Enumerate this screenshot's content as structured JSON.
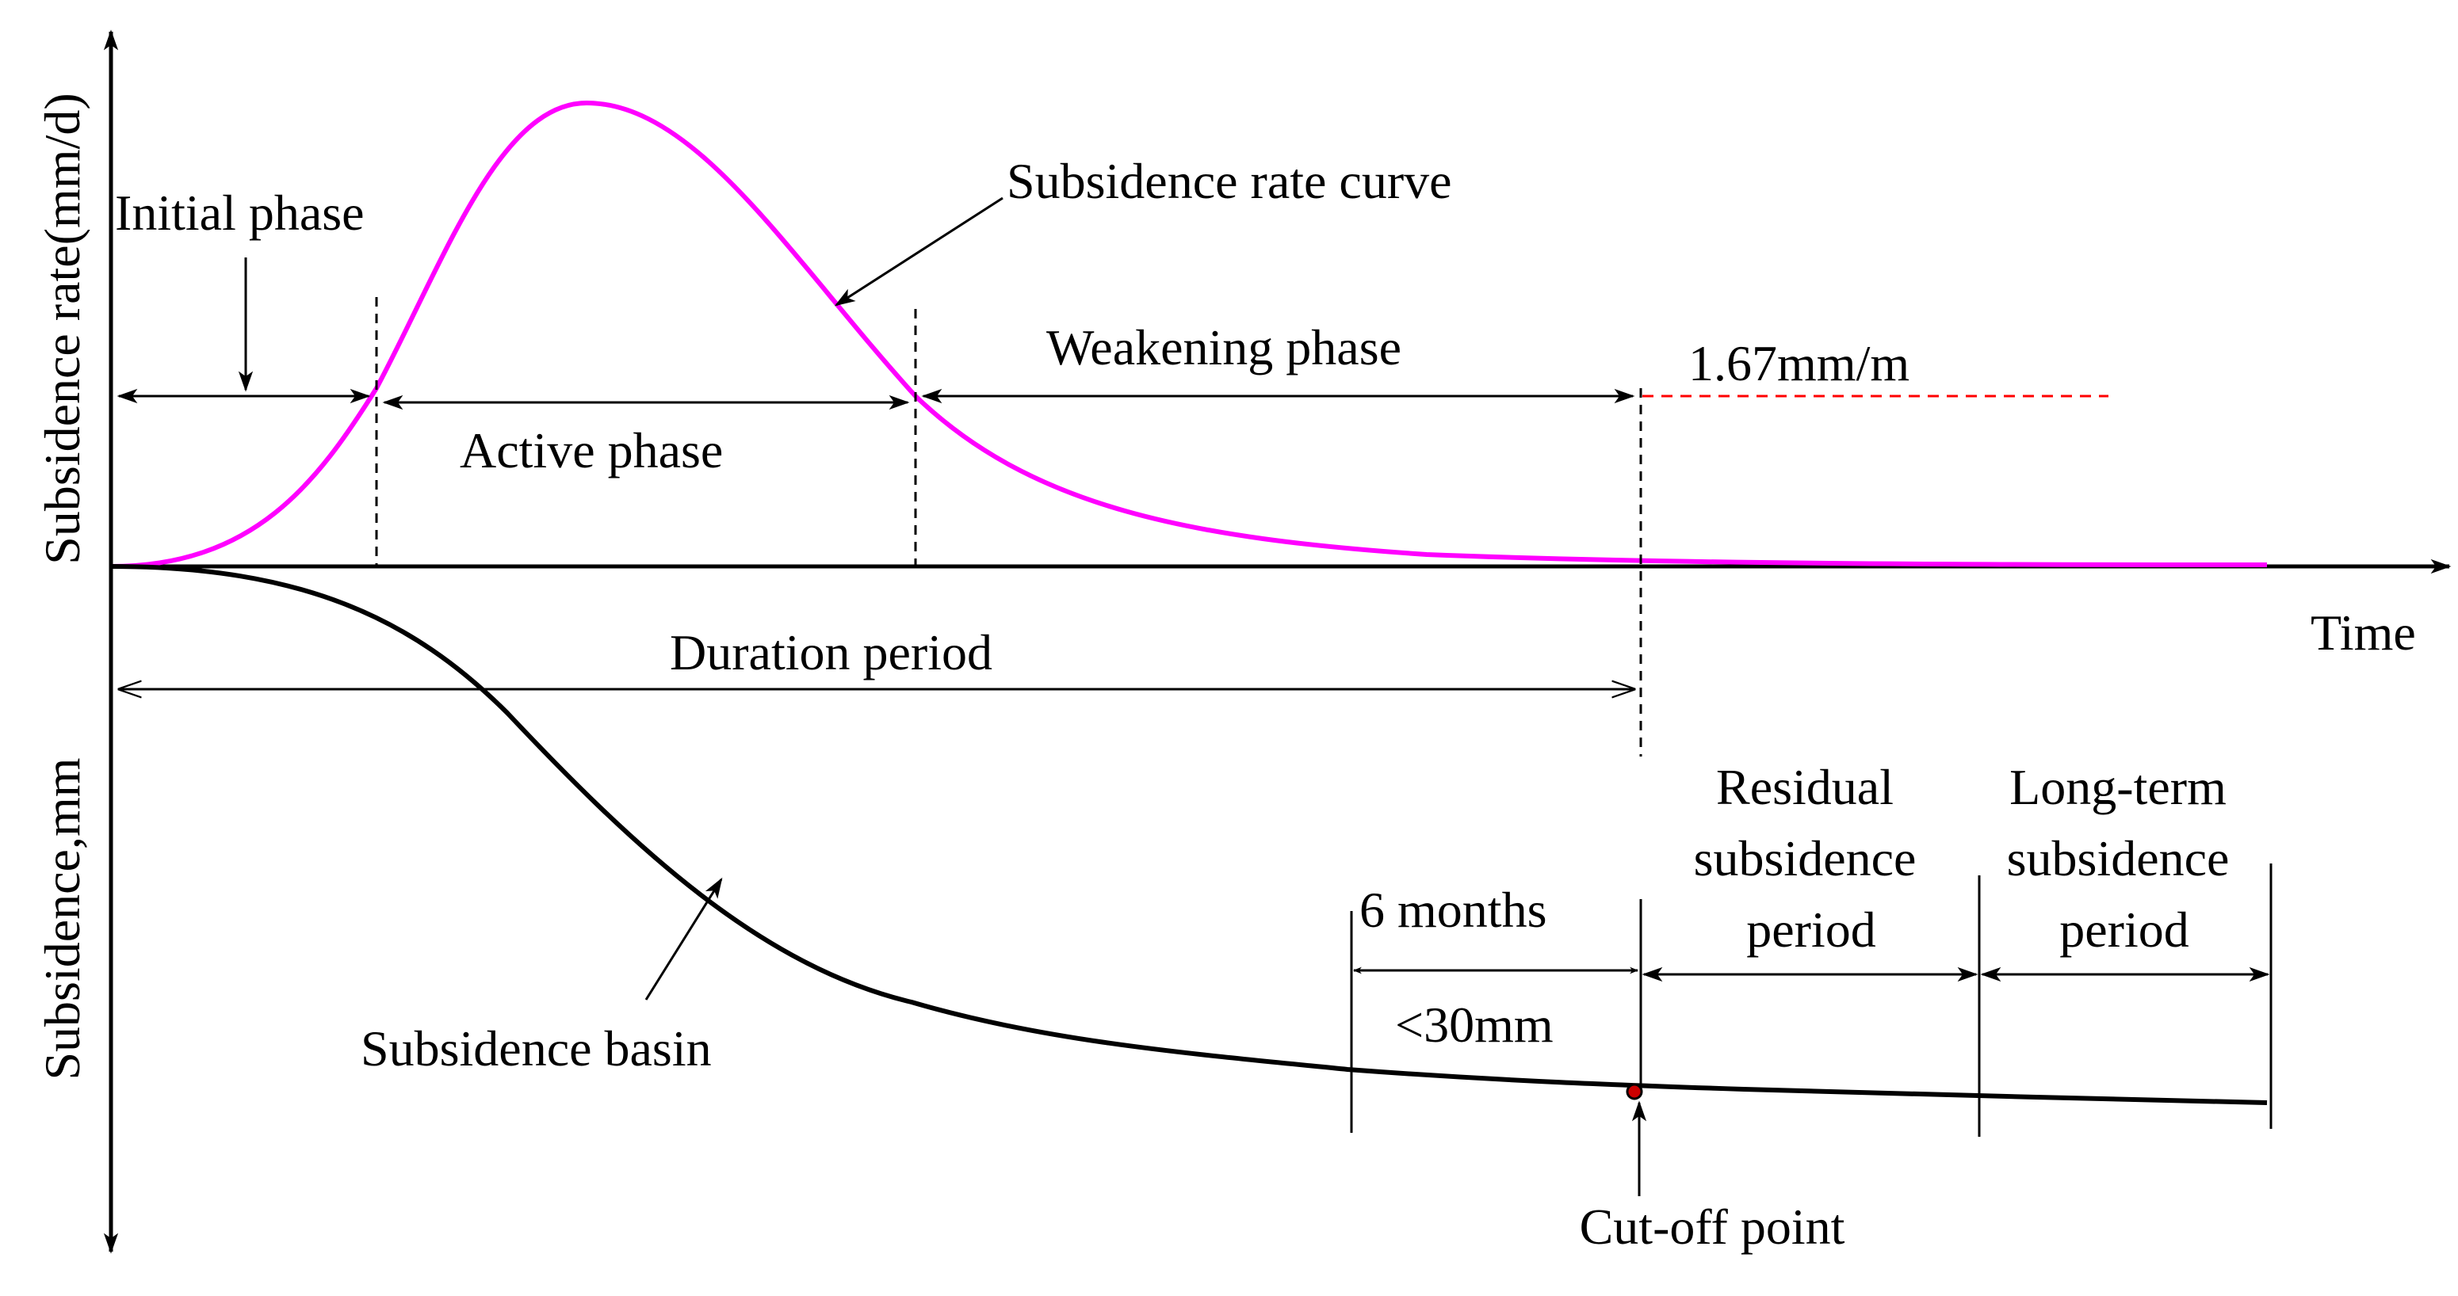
{
  "axes": {
    "y_upper_label": "Subsidence rate(mm/d)",
    "y_lower_label": "Subsidence,mm",
    "x_label": "Time"
  },
  "curves": {
    "rate_curve_label": "Subsidence rate curve",
    "basin_label": "Subsidence basin",
    "rate_color": "#ff00ff",
    "basin_color": "#000000"
  },
  "phases": {
    "initial": "Initial phase",
    "active": "Active phase",
    "weakening": "Weakening phase",
    "duration": "Duration period"
  },
  "threshold": {
    "label": "1.67mm/m",
    "color": "#ff0000"
  },
  "criteria": {
    "months": "6 months",
    "limit": "<30mm"
  },
  "periods": {
    "residual": [
      "Residual",
      "subsidence",
      "period"
    ],
    "long_term": [
      "Long-term",
      "subsidence",
      "period"
    ]
  },
  "cutoff": {
    "label": "Cut-off point",
    "color": "#cc0000"
  }
}
